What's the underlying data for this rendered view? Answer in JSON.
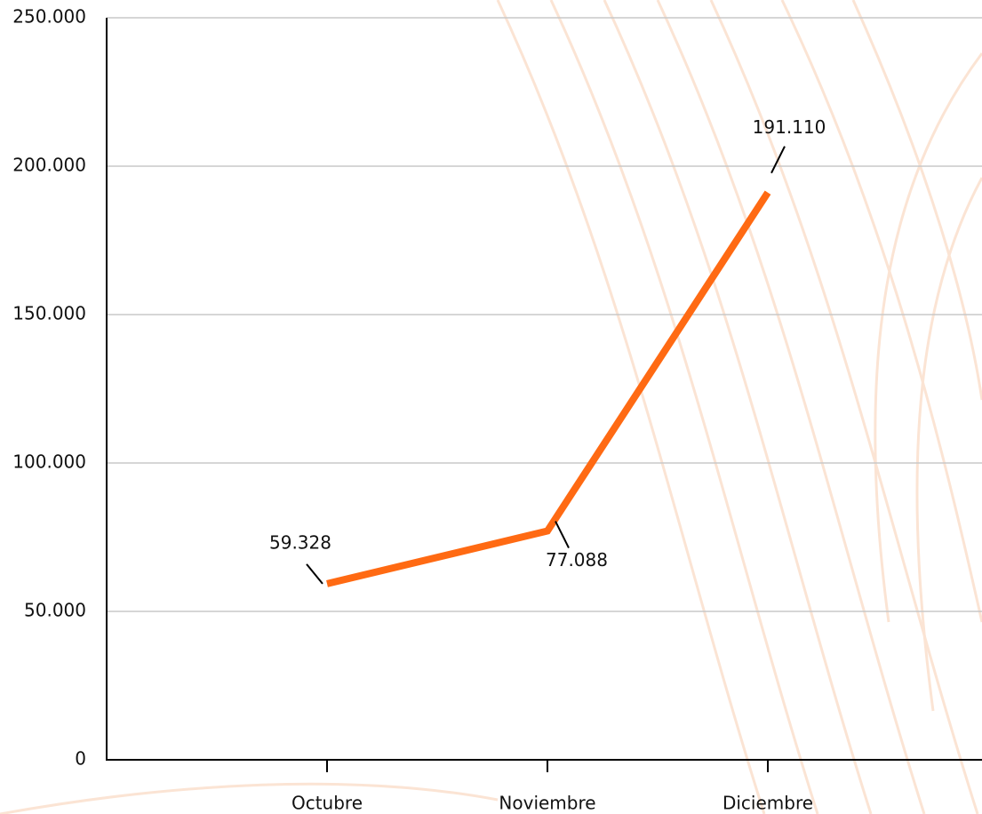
{
  "chart_data": {
    "type": "line",
    "categories": [
      "Octubre",
      "Noviembre",
      "Diciembre"
    ],
    "series": [
      {
        "name": null,
        "color": "#ff6a13",
        "values": [
          59328,
          77088,
          191110
        ],
        "value_labels": [
          "59.328",
          "77.088",
          "191.110"
        ]
      }
    ],
    "ylim": [
      0,
      250000
    ],
    "yticks": [
      0,
      {
        "value": 50000,
        "label": "50.000"
      },
      {
        "value": 100000,
        "label": "100.000"
      },
      {
        "value": 150000,
        "label": "150.000"
      },
      {
        "value": 200000,
        "label": "200.000"
      },
      {
        "value": 250000,
        "label": "250.000"
      }
    ],
    "grid": true
  }
}
